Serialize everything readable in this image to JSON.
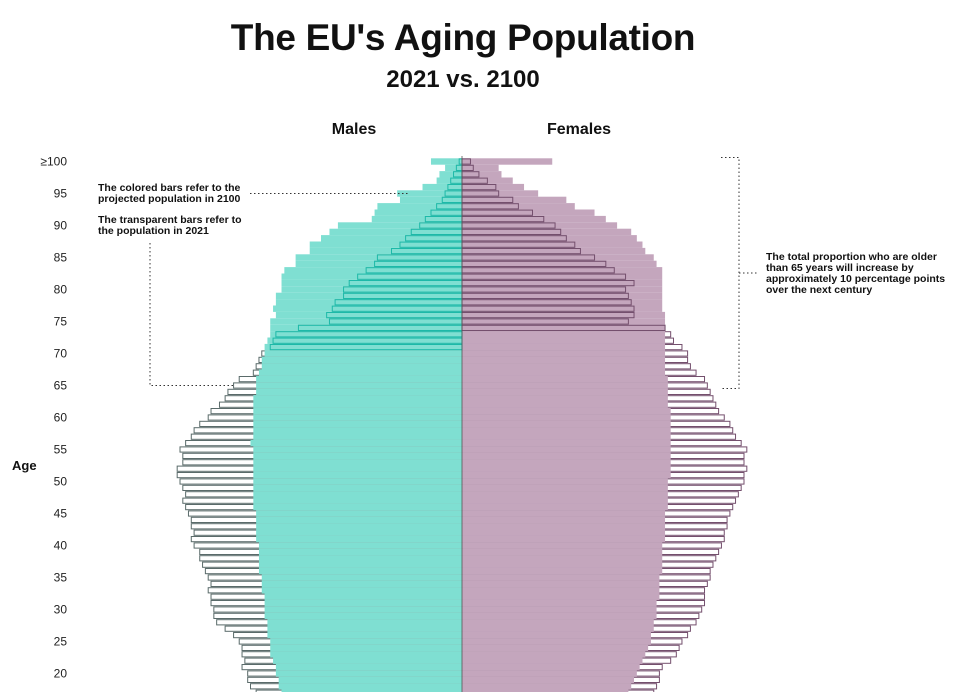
{
  "chart_data": {
    "type": "bar",
    "orientation": "horizontal",
    "title": "The EU's Aging Population",
    "subtitle": "2021 vs. 2100",
    "ylabel": "Age",
    "side_labels": {
      "left": "Males",
      "right": "Females"
    },
    "y_ticks": [
      "≥100",
      "95",
      "90",
      "85",
      "80",
      "75",
      "70",
      "65",
      "60",
      "55",
      "50",
      "45",
      "40",
      "35",
      "30",
      "25",
      "20"
    ],
    "ages": [
      100,
      99,
      98,
      97,
      96,
      95,
      94,
      93,
      92,
      91,
      90,
      89,
      88,
      87,
      86,
      85,
      84,
      83,
      82,
      81,
      80,
      79,
      78,
      77,
      76,
      75,
      74,
      73,
      72,
      71,
      70,
      69,
      68,
      67,
      66,
      65,
      64,
      63,
      62,
      61,
      60,
      59,
      58,
      57,
      56,
      55,
      54,
      53,
      52,
      51,
      50,
      49,
      48,
      47,
      46,
      45,
      44,
      43,
      42,
      41,
      40,
      39,
      38,
      37,
      36,
      35,
      34,
      33,
      32,
      31,
      30,
      29,
      28,
      27,
      26,
      25,
      24,
      23,
      22,
      21,
      20,
      19,
      18,
      17
    ],
    "value_unit": "relative share (max = 1)",
    "series": [
      {
        "name": "Males 2100",
        "style": "colored",
        "values": [
          0.11,
          0.06,
          0.08,
          0.09,
          0.14,
          0.23,
          0.22,
          0.3,
          0.31,
          0.32,
          0.44,
          0.47,
          0.5,
          0.54,
          0.54,
          0.59,
          0.59,
          0.63,
          0.64,
          0.64,
          0.64,
          0.66,
          0.66,
          0.67,
          0.66,
          0.68,
          0.68,
          0.68,
          0.69,
          0.7,
          0.7,
          0.71,
          0.71,
          0.72,
          0.73,
          0.73,
          0.73,
          0.74,
          0.74,
          0.74,
          0.74,
          0.74,
          0.74,
          0.74,
          0.75,
          0.74,
          0.74,
          0.74,
          0.74,
          0.74,
          0.74,
          0.74,
          0.74,
          0.74,
          0.74,
          0.73,
          0.73,
          0.73,
          0.73,
          0.73,
          0.72,
          0.72,
          0.72,
          0.72,
          0.72,
          0.71,
          0.71,
          0.71,
          0.7,
          0.7,
          0.7,
          0.7,
          0.69,
          0.69,
          0.69,
          0.68,
          0.68,
          0.68,
          0.67,
          0.66,
          0.66,
          0.65,
          0.65,
          0.64
        ]
      },
      {
        "name": "Males 2021",
        "style": "transparent",
        "values": [
          0.01,
          0.02,
          0.03,
          0.04,
          0.05,
          0.06,
          0.07,
          0.09,
          0.11,
          0.13,
          0.15,
          0.18,
          0.2,
          0.22,
          0.25,
          0.3,
          0.31,
          0.34,
          0.37,
          0.4,
          0.42,
          0.42,
          0.45,
          0.46,
          0.48,
          0.47,
          0.58,
          0.66,
          0.67,
          0.68,
          0.71,
          0.72,
          0.73,
          0.74,
          0.79,
          0.81,
          0.83,
          0.84,
          0.86,
          0.89,
          0.9,
          0.93,
          0.95,
          0.96,
          0.98,
          1.0,
          0.99,
          0.99,
          1.01,
          1.01,
          1.0,
          0.99,
          0.98,
          0.99,
          0.98,
          0.97,
          0.96,
          0.96,
          0.95,
          0.96,
          0.95,
          0.93,
          0.93,
          0.92,
          0.91,
          0.9,
          0.89,
          0.9,
          0.89,
          0.89,
          0.88,
          0.88,
          0.87,
          0.84,
          0.81,
          0.79,
          0.78,
          0.78,
          0.77,
          0.78,
          0.76,
          0.76,
          0.75,
          0.73
        ]
      },
      {
        "name": "Females 2100",
        "style": "colored",
        "values": [
          0.32,
          0.13,
          0.14,
          0.18,
          0.22,
          0.27,
          0.37,
          0.4,
          0.47,
          0.51,
          0.55,
          0.6,
          0.62,
          0.64,
          0.65,
          0.68,
          0.69,
          0.71,
          0.71,
          0.71,
          0.71,
          0.71,
          0.71,
          0.71,
          0.72,
          0.72,
          0.72,
          0.72,
          0.72,
          0.72,
          0.72,
          0.72,
          0.72,
          0.72,
          0.73,
          0.73,
          0.73,
          0.73,
          0.73,
          0.74,
          0.74,
          0.74,
          0.74,
          0.74,
          0.74,
          0.74,
          0.74,
          0.74,
          0.74,
          0.74,
          0.73,
          0.73,
          0.73,
          0.73,
          0.73,
          0.72,
          0.72,
          0.72,
          0.72,
          0.72,
          0.71,
          0.71,
          0.71,
          0.71,
          0.71,
          0.7,
          0.7,
          0.7,
          0.7,
          0.69,
          0.69,
          0.69,
          0.68,
          0.68,
          0.67,
          0.67,
          0.66,
          0.65,
          0.64,
          0.63,
          0.62,
          0.61,
          0.6,
          0.59
        ]
      },
      {
        "name": "Females 2021",
        "style": "transparent",
        "values": [
          0.03,
          0.04,
          0.06,
          0.09,
          0.12,
          0.13,
          0.18,
          0.2,
          0.25,
          0.29,
          0.33,
          0.35,
          0.37,
          0.4,
          0.42,
          0.47,
          0.51,
          0.54,
          0.58,
          0.61,
          0.58,
          0.59,
          0.6,
          0.61,
          0.61,
          0.59,
          0.72,
          0.74,
          0.75,
          0.78,
          0.8,
          0.8,
          0.81,
          0.83,
          0.86,
          0.87,
          0.88,
          0.89,
          0.9,
          0.91,
          0.93,
          0.95,
          0.96,
          0.97,
          0.99,
          1.01,
          1.0,
          1.0,
          1.01,
          1.0,
          1.0,
          0.99,
          0.98,
          0.97,
          0.96,
          0.95,
          0.94,
          0.94,
          0.93,
          0.93,
          0.92,
          0.91,
          0.9,
          0.89,
          0.88,
          0.88,
          0.87,
          0.86,
          0.86,
          0.86,
          0.85,
          0.84,
          0.83,
          0.81,
          0.8,
          0.78,
          0.77,
          0.76,
          0.74,
          0.71,
          0.7,
          0.7,
          0.69,
          0.68
        ]
      }
    ],
    "annotations": [
      "The colored bars refer to the projected population in 2100",
      "The transparent bars refer to the population in 2021",
      "The total proportion who are older than 65 years will increase by approximately 10 percentage points over the next century"
    ],
    "colors": {
      "males_fill": "#7fdfd2",
      "males_stroke": "#1db9a8",
      "males_label": "#1db9a8",
      "females_fill": "#c4a6bd",
      "females_stroke": "#744f6d",
      "females_label": "#8a5e83"
    },
    "grid": false,
    "legend": "none"
  }
}
